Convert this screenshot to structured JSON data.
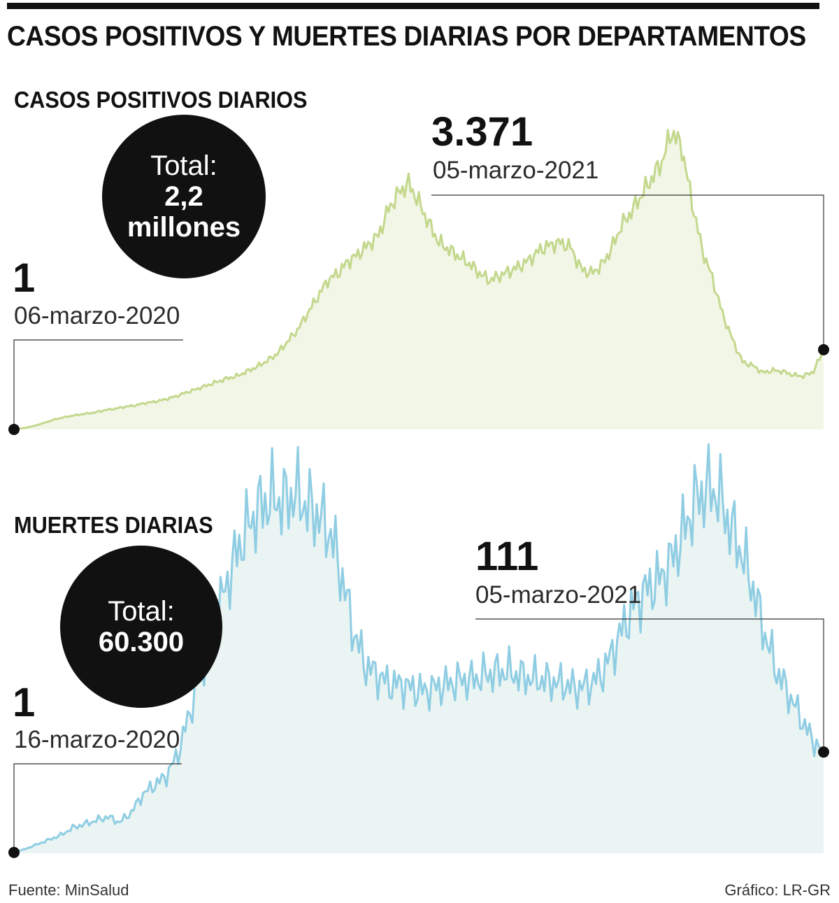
{
  "title": "CASOS POSITIVOS Y MUERTES DIARIAS POR DEPARTAMENTOS",
  "source": "Fuente: MinSalud",
  "credit": "Gráfico: LR-GR",
  "colors": {
    "cases_line": "#c3d88d",
    "cases_fill": "#f1f6e6",
    "deaths_line": "#8fcde3",
    "deaths_fill": "#e9f4f3",
    "bubble": "#111111"
  },
  "chart_data": [
    {
      "type": "area",
      "title": "CASOS POSITIVOS DIARIOS",
      "total_label": "Total:",
      "total_value": "2,2\nmillones",
      "start": {
        "value": "1",
        "date": "06-marzo-2020"
      },
      "end": {
        "value": "3.371",
        "date": "05-marzo-2021"
      },
      "x_range": [
        "06-marzo-2020",
        "05-marzo-2021"
      ],
      "y_range": [
        0,
        13450
      ],
      "series": [
        {
          "values": [
            1,
            60,
            150,
            280,
            420,
            520,
            600,
            660,
            720,
            820,
            880,
            960,
            1020,
            1120,
            1180,
            1280,
            1400,
            1560,
            1700,
            1850,
            2000,
            2150,
            2250,
            2450,
            2650,
            2900,
            3200,
            3700,
            4200,
            4900,
            5600,
            6300,
            6600,
            7100,
            7400,
            7800,
            8200,
            9300,
            10000,
            10400,
            9600,
            8700,
            7900,
            7600,
            7300,
            7000,
            6600,
            6300,
            6500,
            6700,
            6900,
            7200,
            7600,
            7800,
            7900,
            7700,
            6800,
            6600,
            6900,
            7600,
            8600,
            9200,
            9900,
            10600,
            11300,
            12600,
            11900,
            9600,
            7600,
            6400,
            4900,
            3800,
            2850,
            2700,
            2400,
            2500,
            2450,
            2300,
            2250,
            2450,
            3371
          ],
          "ripple": 0.05
        }
      ]
    },
    {
      "type": "area",
      "title": "MUERTES DIARIAS",
      "total_label": "Total:",
      "total_value": "60.300",
      "start": {
        "value": "1",
        "date": "16-marzo-2020"
      },
      "end": {
        "value": "111",
        "date": "05-marzo-2021"
      },
      "x_range": [
        "16-marzo-2020",
        "05-marzo-2021"
      ],
      "y_range": [
        0,
        410
      ],
      "series": [
        {
          "values": [
            1,
            5,
            10,
            15,
            20,
            28,
            32,
            36,
            40,
            34,
            45,
            65,
            75,
            85,
            110,
            155,
            200,
            250,
            290,
            330,
            360,
            380,
            390,
            385,
            395,
            380,
            370,
            350,
            300,
            240,
            205,
            195,
            185,
            185,
            180,
            178,
            182,
            185,
            190,
            190,
            195,
            198,
            200,
            195,
            192,
            190,
            188,
            185,
            180,
            185,
            195,
            220,
            250,
            275,
            290,
            300,
            320,
            350,
            385,
            400,
            395,
            360,
            330,
            290,
            240,
            200,
            175,
            150,
            125,
            111
          ],
          "ripple": 0.14
        }
      ]
    }
  ]
}
